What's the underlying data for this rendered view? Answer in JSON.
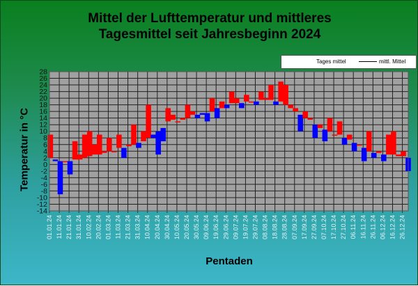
{
  "chart_data": {
    "type": "bar",
    "title": "Mittel der Lufttemperatur und mittleres Tagesmittel seit Jahresbeginn 2024",
    "title_lines": [
      "Mittel der Lufttemperatur und mittleres",
      "Tagesmittel seit Jahresbeginn 2024"
    ],
    "xlabel": "Pentaden",
    "ylabel": "Temperatur in °C",
    "ylim": [
      -14,
      28
    ],
    "yticks": [
      28,
      26,
      24,
      22,
      20,
      18,
      16,
      14,
      12,
      10,
      8,
      6,
      4,
      2,
      0,
      -2,
      -4,
      -6,
      -8,
      -10,
      -12,
      -14
    ],
    "xlim_days": [
      0,
      366
    ],
    "xtick_labels": [
      "01.01.24",
      "11.01.24",
      "21.01.24",
      "31.01.24",
      "10.02.24",
      "20.02.24",
      "01.03.24",
      "11.03.24",
      "21.03.24",
      "31.03.24",
      "10.04.24",
      "20.04.24",
      "30.04.24",
      "10.05.24",
      "20.05.24",
      "30.05.24",
      "09.06.24",
      "19.06.24",
      "29.06.24",
      "09.07.24",
      "19.07.24",
      "29.07.24",
      "08.08.24",
      "18.08.24",
      "28.08.24",
      "07.09.24",
      "17.09.24",
      "27.09.24",
      "07.10.24",
      "17.10.24",
      "27.10.24",
      "06.11.24",
      "16.11.24",
      "26.11.24",
      "06.12.24",
      "16.12.24",
      "26.12.24"
    ],
    "grid": true,
    "legend": {
      "position": "top-right",
      "entries": [
        "Tages mittel",
        "mittl. Mittel"
      ]
    },
    "colors": {
      "above": "#ff0000",
      "below": "#0000ff",
      "plot_bg": "#a0a0a0",
      "grid": "#222222"
    },
    "series": [
      {
        "name": "Tages mittel",
        "day": [
          1,
          6,
          11,
          16,
          21,
          26,
          31,
          36,
          41,
          46,
          51,
          56,
          61,
          66,
          71,
          76,
          81,
          86,
          91,
          96,
          101,
          106,
          111,
          116,
          121,
          126,
          131,
          136,
          141,
          146,
          151,
          156,
          161,
          166,
          171,
          176,
          181,
          186,
          191,
          196,
          201,
          206,
          211,
          216,
          221,
          226,
          231,
          236,
          241,
          246,
          251,
          256,
          261,
          266,
          271,
          276,
          281,
          286,
          291,
          296,
          301,
          306,
          311,
          316,
          321,
          326,
          331,
          336,
          341,
          346,
          351,
          356,
          361,
          366
        ],
        "values": [
          9,
          1,
          -9,
          1,
          -3,
          7,
          3,
          9,
          10,
          6,
          9,
          4,
          8,
          4,
          9,
          2,
          6,
          12,
          5,
          10,
          18,
          8,
          3,
          7,
          17,
          15,
          13,
          14,
          18,
          16,
          14,
          15,
          13,
          20,
          14,
          19,
          17,
          22,
          20,
          17,
          21,
          19,
          18,
          22,
          20,
          24,
          18,
          25,
          24,
          18,
          17,
          10,
          16,
          14,
          8,
          12,
          7,
          14,
          9,
          13,
          6,
          9,
          4,
          6,
          1,
          10,
          2,
          4,
          1,
          9,
          10,
          3,
          4,
          -2
        ]
      },
      {
        "name": "mittl. Mittel",
        "values": [
          2,
          1.5,
          1,
          1,
          1,
          1.5,
          1.5,
          2,
          2.5,
          3,
          3,
          3.5,
          4,
          4,
          5,
          5,
          5.5,
          6,
          6.5,
          7,
          8,
          9,
          10,
          11,
          13,
          13.5,
          13,
          13.5,
          14,
          15,
          15,
          15.5,
          15.5,
          16,
          17,
          17,
          18,
          18.5,
          18.5,
          18.5,
          19,
          19,
          19,
          19.5,
          19.5,
          19.5,
          19,
          19,
          18,
          17,
          16,
          15,
          14,
          13.5,
          12,
          11,
          10.5,
          10,
          9,
          9,
          8,
          7.5,
          6.5,
          6,
          5,
          4,
          3.5,
          3.5,
          3,
          3,
          3,
          2.5,
          2.5,
          2
        ]
      }
    ]
  }
}
